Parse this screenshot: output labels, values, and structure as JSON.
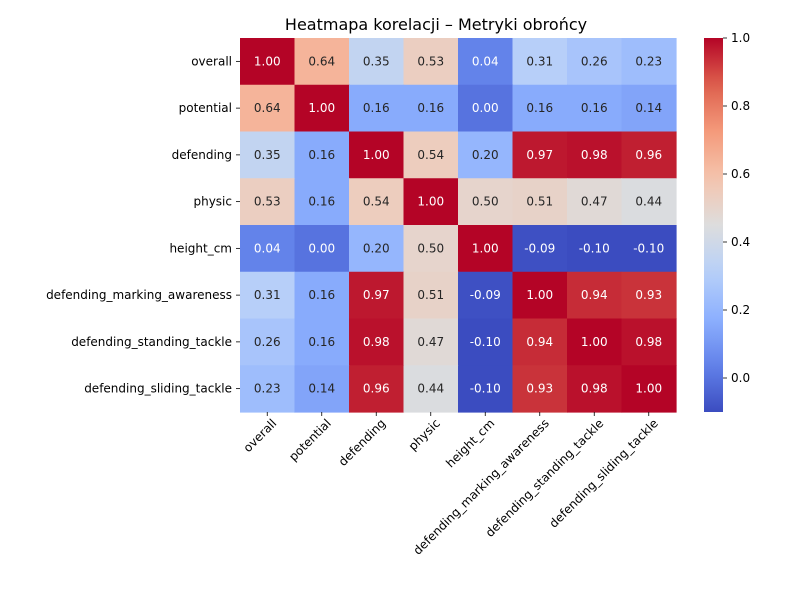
{
  "chart_data": {
    "type": "heatmap",
    "title": "Heatmapa korelacji – Metryki obrońcy",
    "row_labels": [
      "overall",
      "potential",
      "defending",
      "physic",
      "height_cm",
      "defending_marking_awareness",
      "defending_standing_tackle",
      "defending_sliding_tackle"
    ],
    "column_labels": [
      "overall",
      "potential",
      "defending",
      "physic",
      "height_cm",
      "defending_marking_awareness",
      "defending_standing_tackle",
      "defending_sliding_tackle"
    ],
    "values": [
      [
        1.0,
        0.64,
        0.35,
        0.53,
        0.04,
        0.31,
        0.26,
        0.23
      ],
      [
        0.64,
        1.0,
        0.16,
        0.16,
        0.0,
        0.16,
        0.16,
        0.14
      ],
      [
        0.35,
        0.16,
        1.0,
        0.54,
        0.2,
        0.97,
        0.98,
        0.96
      ],
      [
        0.53,
        0.16,
        0.54,
        1.0,
        0.5,
        0.51,
        0.47,
        0.44
      ],
      [
        0.04,
        0.0,
        0.2,
        0.5,
        1.0,
        -0.09,
        -0.1,
        -0.1
      ],
      [
        0.31,
        0.16,
        0.97,
        0.51,
        -0.09,
        1.0,
        0.94,
        0.93
      ],
      [
        0.26,
        0.16,
        0.98,
        0.47,
        -0.1,
        0.94,
        1.0,
        0.98
      ],
      [
        0.23,
        0.14,
        0.96,
        0.44,
        -0.1,
        0.93,
        0.98,
        1.0
      ]
    ],
    "colormap": "coolwarm",
    "vmin": -0.1,
    "vmax": 1.0,
    "colorbar_ticks": [
      "0.0",
      "0.2",
      "0.4",
      "0.6",
      "0.8",
      "1.0"
    ],
    "annotation_format": "2 decimals",
    "grid": false,
    "legend": "colorbar-right"
  }
}
